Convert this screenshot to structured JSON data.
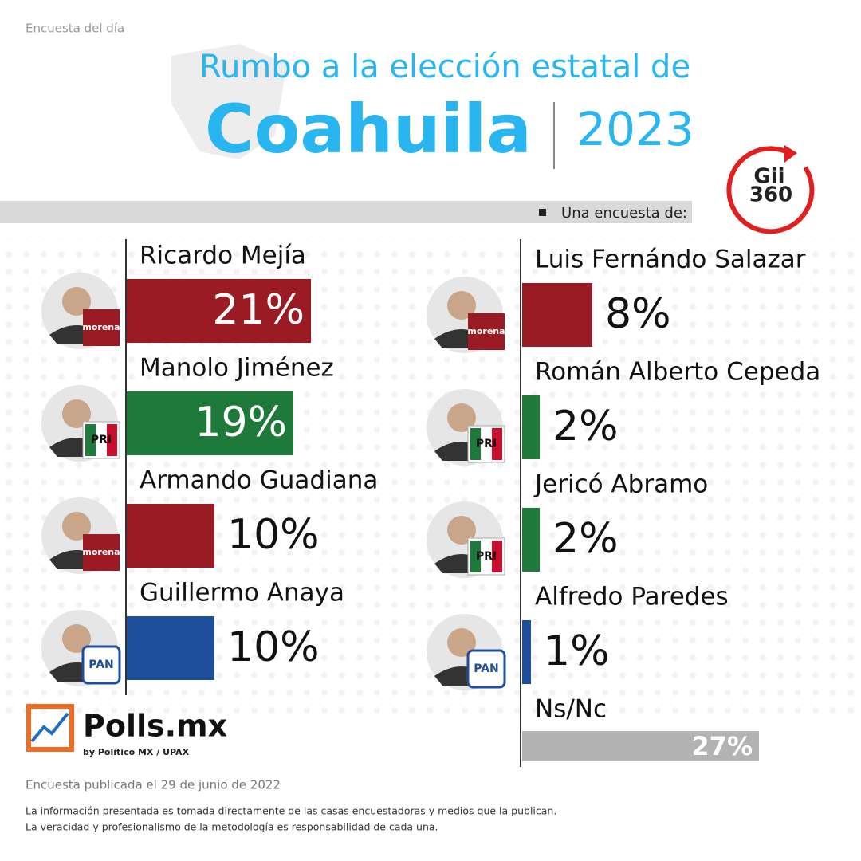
{
  "header": {
    "tag": "Encuesta del día",
    "title_line1": "Rumbo a la elección estatal de",
    "title_state": "Coahuila",
    "title_year": "2023",
    "pollster_note": "Una encuesta de:",
    "pollster_logo": [
      "Gii",
      "360"
    ]
  },
  "chart_data": {
    "type": "bar",
    "categories": [
      "Ricardo Mejía",
      "Manolo Jiménez",
      "Armando Guadiana",
      "Guillermo Anaya",
      "Luis Fernándo Salazar",
      "Román Alberto Cepeda",
      "Jericó Abramo",
      "Alfredo Paredes",
      "Ns/Nc"
    ],
    "parties": [
      "morena",
      "PRI",
      "morena",
      "PAN",
      "morena",
      "PRI",
      "PRI",
      "PAN",
      null
    ],
    "values": [
      21,
      19,
      10,
      10,
      8,
      2,
      2,
      1,
      27
    ],
    "value_labels": [
      "21%",
      "19%",
      "10%",
      "10%",
      "8%",
      "2%",
      "2%",
      "1%",
      "27%"
    ],
    "colors": [
      "#9b1b24",
      "#1e7a3a",
      "#9b1b24",
      "#1d4f9c",
      "#9b1b24",
      "#1e7a3a",
      "#1e7a3a",
      "#1d4f9c",
      "#b3b3b3"
    ]
  },
  "brand": {
    "name": "Polls.mx",
    "byline": "by Político MX / UPAX"
  },
  "footer": {
    "date": "Encuesta publicada el 29 de junio de 2022",
    "disclaimer": [
      "La información presentada es tomada directamente de las casas encuestadoras y medios que la publican.",
      "La veracidad y profesionalismo de la metodología es responsabilidad de cada una."
    ]
  }
}
